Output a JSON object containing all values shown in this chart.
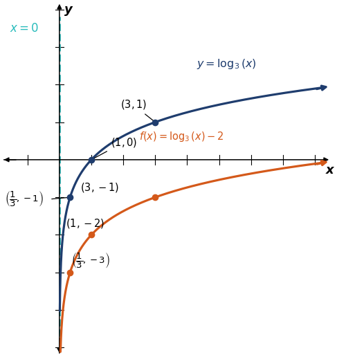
{
  "xlim": [
    -1.8,
    8.5
  ],
  "ylim": [
    -5.2,
    4.2
  ],
  "blue_color": "#1f3d6e",
  "orange_color": "#d4591a",
  "teal_color": "#2abcbc",
  "bg_color": "#ffffff",
  "points_blue": [
    [
      0.3333,
      -1
    ],
    [
      1,
      0
    ],
    [
      3,
      1
    ]
  ],
  "points_orange": [
    [
      0.3333,
      -3
    ],
    [
      1,
      -2
    ],
    [
      3,
      -1
    ]
  ],
  "xlabel": "x",
  "ylabel": "y",
  "asymptote_label": "x = 0"
}
